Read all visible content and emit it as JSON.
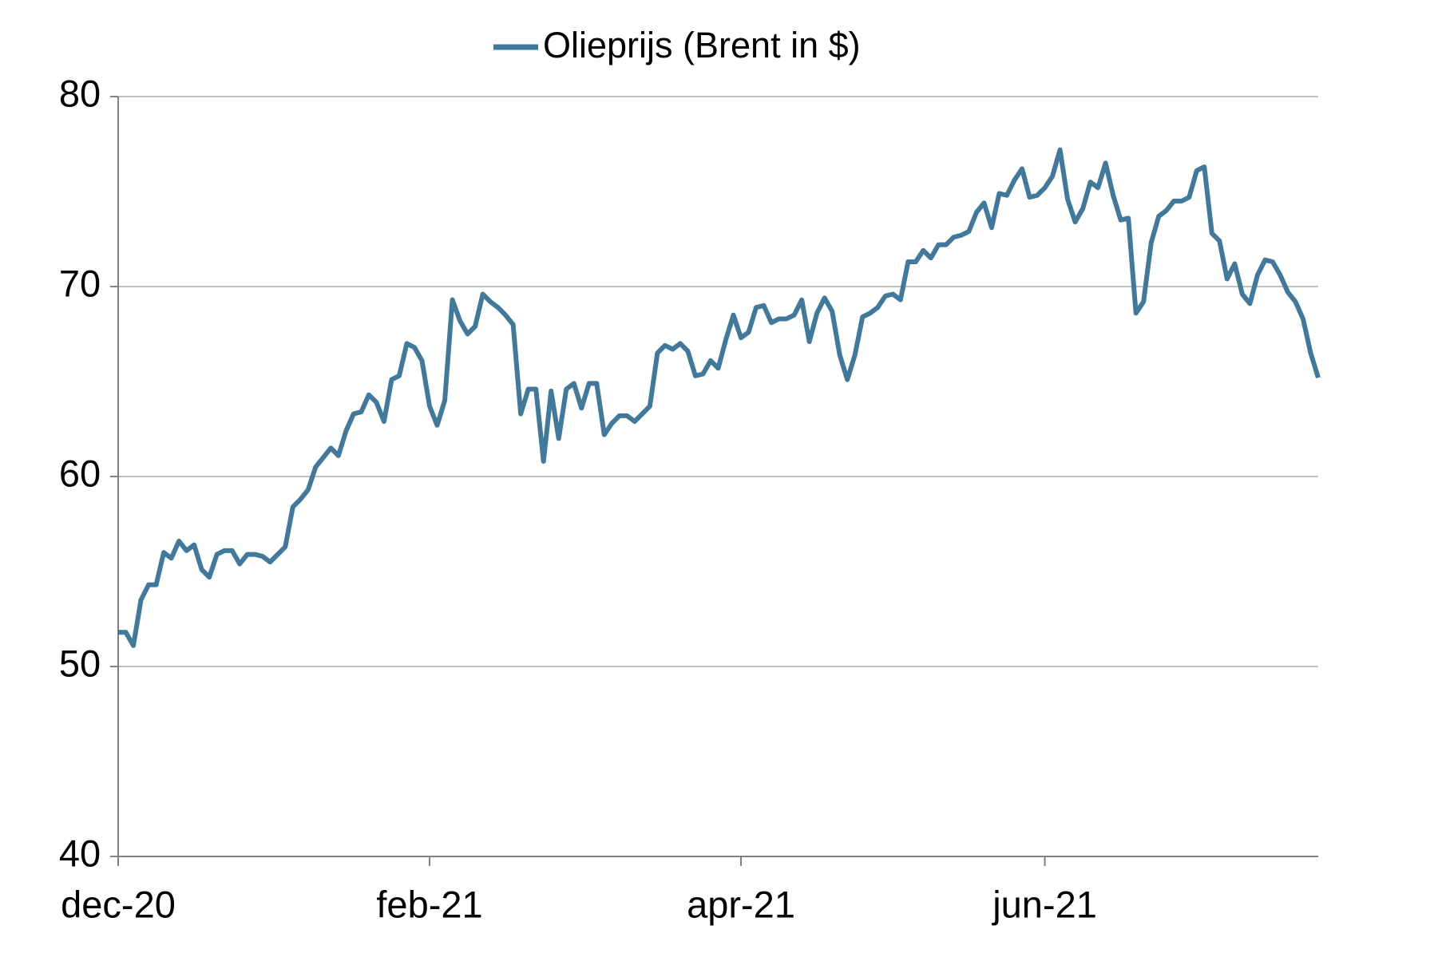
{
  "chart_data": {
    "type": "line",
    "categories": [
      "dec-20",
      null,
      null,
      null,
      null,
      null,
      null,
      null,
      null,
      null,
      null,
      null,
      null,
      null,
      null,
      null,
      null,
      null,
      null,
      null,
      null,
      null,
      null,
      null,
      null,
      null,
      null,
      null,
      null,
      null,
      null,
      null,
      null,
      null,
      null,
      null,
      null,
      null,
      null,
      null,
      null,
      "feb-21",
      null,
      null,
      null,
      null,
      null,
      null,
      null,
      null,
      null,
      null,
      null,
      null,
      null,
      null,
      null,
      null,
      null,
      null,
      null,
      null,
      null,
      null,
      null,
      null,
      null,
      null,
      null,
      null,
      null,
      null,
      null,
      null,
      null,
      null,
      null,
      null,
      null,
      null,
      null,
      null,
      "apr-21",
      null,
      null,
      null,
      null,
      null,
      null,
      null,
      null,
      null,
      null,
      null,
      null,
      null,
      null,
      null,
      null,
      null,
      null,
      null,
      null,
      null,
      null,
      null,
      null,
      null,
      null,
      null,
      null,
      null,
      null,
      null,
      null,
      null,
      null,
      null,
      null,
      null,
      null,
      null,
      "jun-21",
      null,
      null,
      null,
      null,
      null,
      null,
      null,
      null,
      null,
      null,
      null,
      null,
      null,
      null,
      null,
      null,
      null,
      null,
      null,
      null,
      null,
      null,
      null,
      null,
      null,
      null,
      null,
      null,
      null,
      null,
      null,
      null,
      null,
      null,
      null,
      null
    ],
    "series": [
      {
        "name": "Olieprijs (Brent in $)",
        "color": "#41799c",
        "values": [
          51.8,
          51.8,
          51.1,
          53.5,
          54.3,
          54.3,
          56.0,
          55.7,
          56.6,
          56.1,
          56.4,
          55.1,
          54.7,
          55.9,
          56.1,
          56.1,
          55.4,
          55.9,
          55.9,
          55.8,
          55.5,
          55.9,
          56.3,
          58.4,
          58.8,
          59.3,
          60.5,
          61.0,
          61.5,
          61.1,
          62.4,
          63.3,
          63.4,
          64.3,
          63.9,
          62.9,
          65.1,
          65.3,
          67.0,
          66.8,
          66.1,
          63.7,
          62.7,
          64.0,
          69.3,
          68.2,
          67.5,
          67.9,
          69.6,
          69.2,
          68.9,
          68.5,
          68.0,
          63.3,
          64.6,
          64.6,
          60.8,
          64.5,
          62.0,
          64.6,
          64.9,
          63.6,
          64.9,
          64.9,
          62.2,
          62.8,
          63.2,
          63.2,
          62.9,
          63.3,
          63.7,
          66.5,
          66.9,
          66.7,
          67.0,
          66.6,
          65.3,
          65.4,
          66.1,
          65.7,
          67.2,
          68.5,
          67.3,
          67.6,
          68.9,
          69.0,
          68.1,
          68.3,
          68.3,
          68.5,
          69.3,
          67.1,
          68.6,
          69.4,
          68.7,
          66.4,
          65.1,
          66.4,
          68.4,
          68.6,
          68.9,
          69.5,
          69.6,
          69.3,
          71.3,
          71.3,
          71.9,
          71.5,
          72.2,
          72.2,
          72.6,
          72.7,
          72.9,
          73.9,
          74.4,
          73.1,
          74.9,
          74.8,
          75.6,
          76.2,
          74.7,
          74.8,
          75.2,
          75.8,
          77.2,
          74.6,
          73.4,
          74.1,
          75.5,
          75.2,
          76.5,
          74.8,
          73.5,
          73.6,
          68.6,
          69.2,
          72.3,
          73.7,
          74.0,
          74.5,
          74.5,
          74.7,
          76.1,
          76.3,
          72.8,
          72.4,
          70.4,
          71.2,
          69.6,
          69.1,
          70.6,
          71.4,
          71.3,
          70.6,
          69.7,
          69.2,
          68.3,
          66.5,
          65.2
        ]
      }
    ],
    "ylim": [
      40,
      80
    ],
    "yticks": [
      40,
      50,
      60,
      70,
      80
    ],
    "grid": true,
    "legend": "top"
  }
}
